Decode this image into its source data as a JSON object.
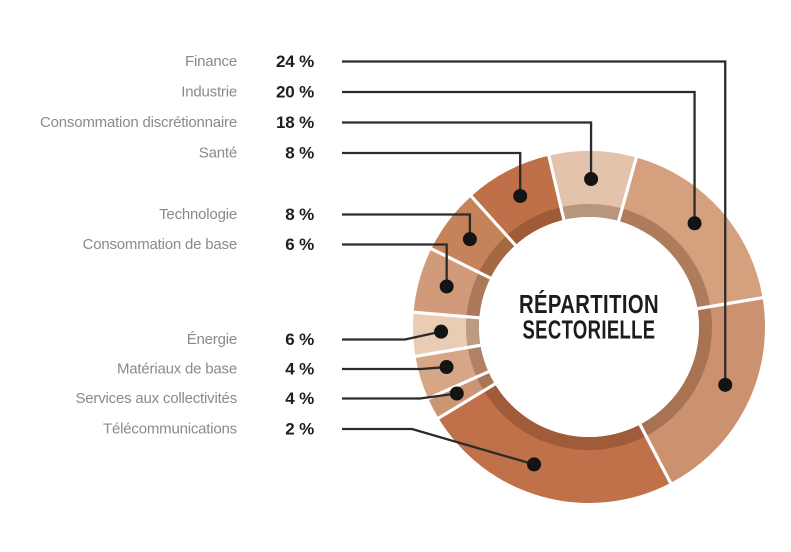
{
  "chart_data": {
    "type": "pie",
    "variant": "donut",
    "title": "RÉPARTITION SECTORIELLE",
    "title_lines": [
      "RÉPARTITION",
      "SECTORIELLE"
    ],
    "unit": "%",
    "legend_position": "left",
    "grid": false,
    "categories": [
      "Finance",
      "Industrie",
      "Consommation discrétionnaire",
      "Santé",
      "Technologie",
      "Consommation de base",
      "Énergie",
      "Matériaux de base",
      "Services aux collectivités",
      "Télécommunications"
    ],
    "values": [
      24,
      20,
      18,
      8,
      8,
      6,
      6,
      4,
      4,
      2
    ],
    "legend": [
      {
        "label": "Finance",
        "value": 24,
        "value_label": "24 %",
        "dot_angle_deg": 113.0
      },
      {
        "label": "Industrie",
        "value": 20,
        "value_label": "20 %",
        "dot_angle_deg": 45.5
      },
      {
        "label": "Consommation discrétionnaire",
        "value": 18,
        "value_label": "18 %",
        "dot_angle_deg": 0.8
      },
      {
        "label": "Santé",
        "value": 8,
        "value_label": "8 %",
        "dot_angle_deg": 332.3
      },
      {
        "label": "Technologie",
        "value": 8,
        "value_label": "8 %",
        "dot_angle_deg": 306.4
      },
      {
        "label": "Consommation de base",
        "value": 6,
        "value_label": "6 %",
        "dot_angle_deg": 285.9
      },
      {
        "label": "Énergie",
        "value": 6,
        "value_label": "6 %",
        "dot_angle_deg": 268.2
      },
      {
        "label": "Matériaux de base",
        "value": 4,
        "value_label": "4 %",
        "dot_angle_deg": 254.3
      },
      {
        "label": "Services aux collectivités",
        "value": 4,
        "value_label": "4 %",
        "dot_angle_deg": 243.3
      },
      {
        "label": "Télécommunications",
        "value": 2,
        "value_label": "2 %",
        "dot_angle_deg": 201.8
      }
    ],
    "start_angle_deg": -13.2,
    "segments_clockwise": [
      {
        "pct": 8,
        "color": "#e3c3ac",
        "dot_of": "Consommation discrétionnaire"
      },
      {
        "pct": 18,
        "color": "#d4a07d",
        "dot_of": "Industrie"
      },
      {
        "pct": 20,
        "color": "#cc9270",
        "dot_of": "Finance"
      },
      {
        "pct": 24,
        "color": "#c0714a",
        "dot_of": "Télécommunications"
      },
      {
        "pct": 2,
        "color": "#cc9674",
        "dot_of": "Services aux collectivités"
      },
      {
        "pct": 4,
        "color": "#d7a687",
        "dot_of": "Matériaux de base"
      },
      {
        "pct": 4,
        "color": "#e8ccb3",
        "dot_of": "Énergie"
      },
      {
        "pct": 6,
        "color": "#d19b7b",
        "dot_of": "Consommation de base"
      },
      {
        "pct": 6,
        "color": "#c6835a",
        "dot_of": "Technologie"
      },
      {
        "pct": 8,
        "color": "#bf7049",
        "dot_of": "Santé"
      }
    ]
  },
  "style": {
    "background": "#ffffff",
    "label_color": "#8a8a8a",
    "value_color": "#1f1f1f",
    "title_color": "#1c1c1c",
    "leader_color": "#2b2b2b",
    "dot_color": "#141414",
    "divider_color": "#ffffff",
    "inner_shadow": "rgba(85,42,18,0.3)",
    "hole_color": "#ffffff"
  }
}
